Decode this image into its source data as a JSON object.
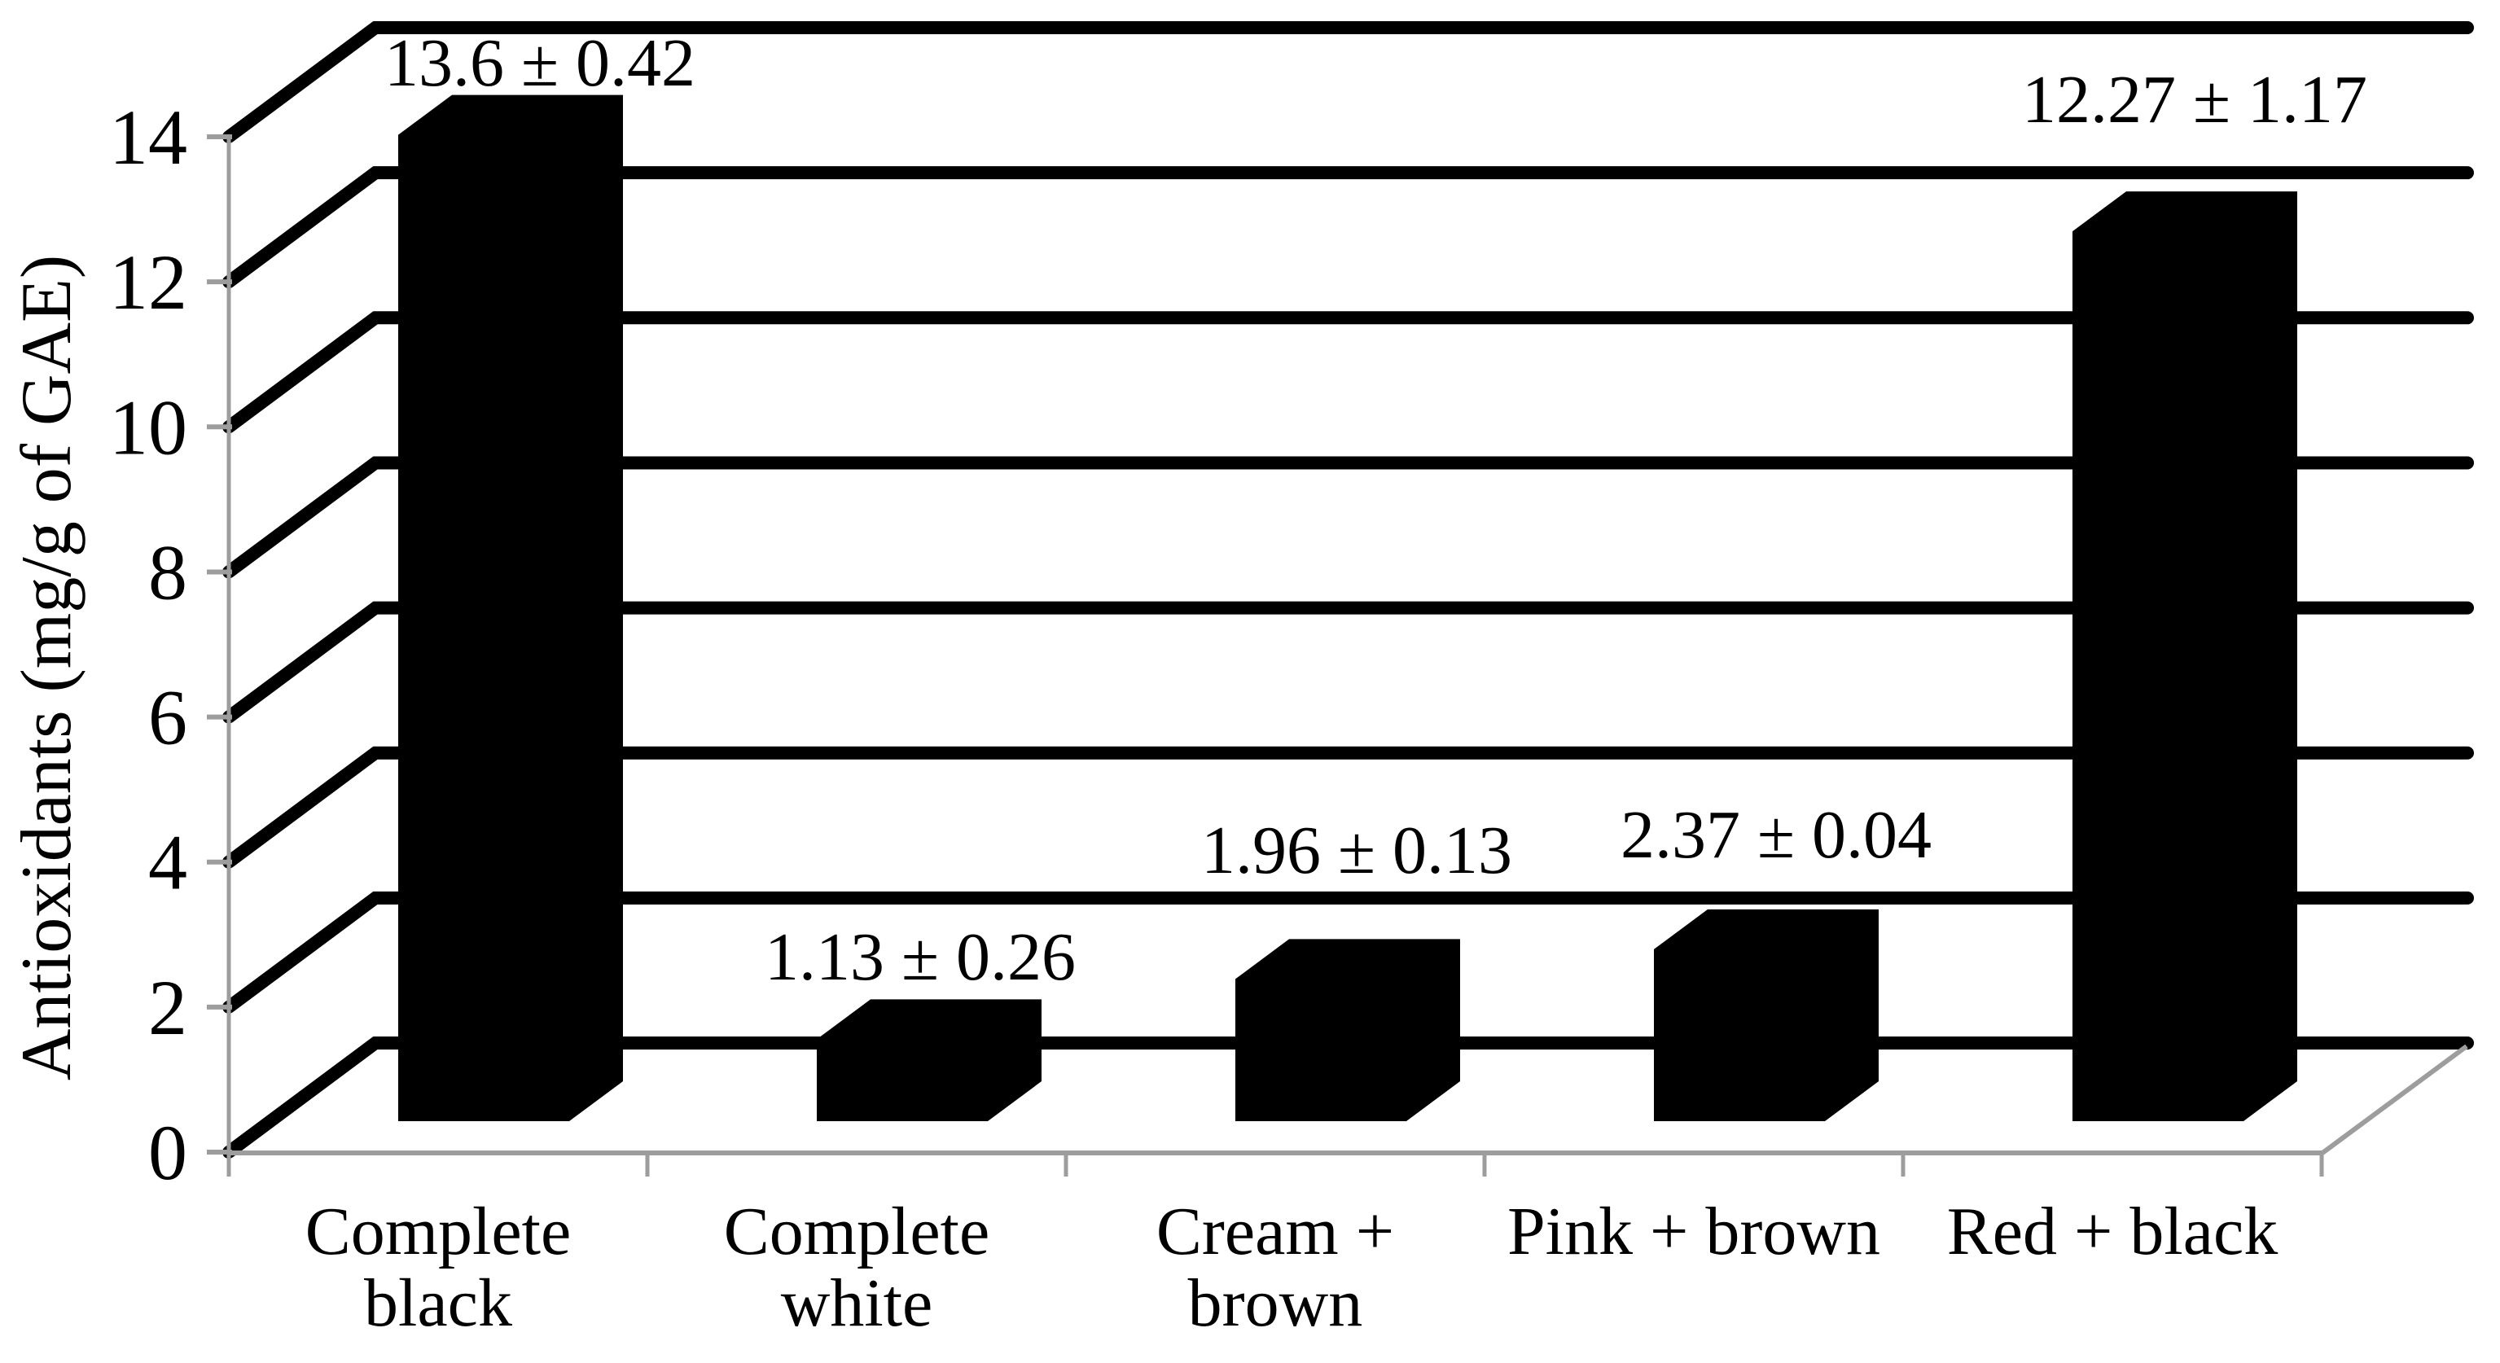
{
  "chart_data": {
    "type": "bar",
    "style": "3d-column",
    "title": "",
    "ylabel": "Antioxidants (mg/g of GAE)",
    "xlabel": "",
    "categories": [
      "Complete black",
      "Complete white",
      "Cream + brown",
      "Pink + brown",
      "Red + black"
    ],
    "category_label_lines": [
      [
        "Complete",
        "black"
      ],
      [
        "Complete",
        "white"
      ],
      [
        "Cream +",
        "brown"
      ],
      [
        "Pink + brown"
      ],
      [
        "Red + black"
      ]
    ],
    "series": [
      {
        "name": "Antioxidants",
        "values": [
          13.6,
          1.13,
          1.96,
          2.37,
          12.27
        ],
        "errors": [
          0.42,
          0.26,
          0.13,
          0.04,
          1.17
        ]
      }
    ],
    "data_labels": [
      "13.6 ± 0.42",
      "1.13 ± 0.26",
      "1.96 ± 0.13",
      "2.37 ± 0.04",
      "12.27 ± 1.17"
    ],
    "yticks": [
      0,
      2,
      4,
      6,
      8,
      10,
      12,
      14
    ],
    "ytick_labels": [
      "0",
      "2",
      "4",
      "6",
      "8",
      "10",
      "12",
      "14"
    ],
    "ylim": [
      0,
      14
    ],
    "grid": true,
    "legend": false,
    "colors": {
      "bar": "#000000",
      "gridline": "#000000",
      "axis": "#9d9d9d",
      "text": "#000000",
      "background": "#ffffff"
    }
  }
}
